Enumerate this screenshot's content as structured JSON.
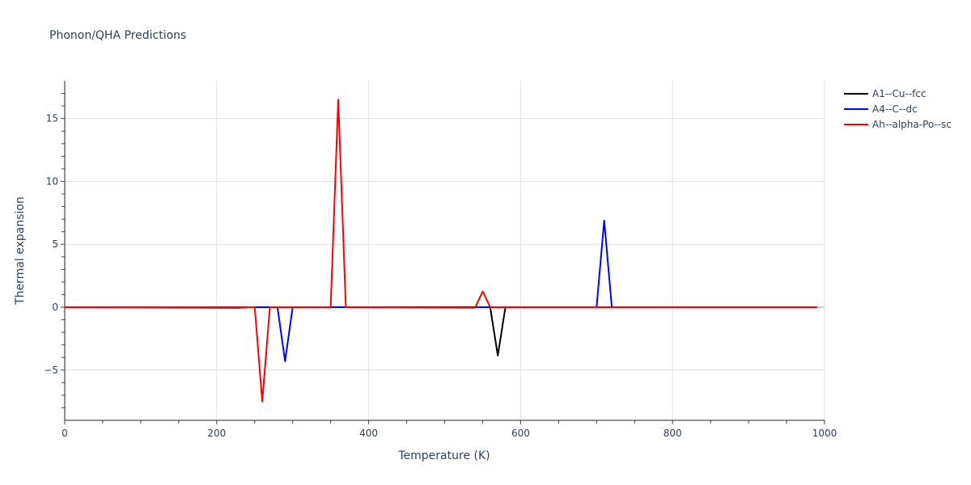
{
  "chart_data": {
    "type": "line",
    "title": "Phonon/QHA Predictions",
    "xlabel": "Temperature (K)",
    "ylabel": "Thermal expansion",
    "xlim": [
      0,
      1000
    ],
    "ylim": [
      -9,
      18
    ],
    "x_ticks": [
      0,
      200,
      400,
      600,
      800,
      1000
    ],
    "y_ticks": [
      -5,
      0,
      5,
      10,
      15
    ],
    "grid": true,
    "legend_position": "right",
    "x_step": 10,
    "x_range": [
      0,
      990
    ],
    "series": [
      {
        "name": "A1--Cu--fcc",
        "color": "#000000",
        "points": [
          [
            0,
            0
          ],
          [
            560,
            0
          ],
          [
            570,
            -3.85
          ],
          [
            580,
            0
          ],
          [
            990,
            0
          ]
        ]
      },
      {
        "name": "A4--C--dc",
        "color": "#0000ff",
        "points": [
          [
            0,
            0
          ],
          [
            230,
            -0.05
          ],
          [
            240,
            0
          ],
          [
            280,
            0
          ],
          [
            290,
            -4.3
          ],
          [
            300,
            0
          ],
          [
            700,
            0
          ],
          [
            710,
            6.9
          ],
          [
            720,
            0
          ],
          [
            990,
            0
          ]
        ]
      },
      {
        "name": "Ah--alpha-Po--sc",
        "color": "#ff0000",
        "points": [
          [
            0,
            0
          ],
          [
            250,
            0
          ],
          [
            260,
            -7.5
          ],
          [
            270,
            0
          ],
          [
            350,
            0
          ],
          [
            360,
            16.5
          ],
          [
            370,
            0
          ],
          [
            540,
            -0.05
          ],
          [
            550,
            1.25
          ],
          [
            560,
            0
          ],
          [
            990,
            0
          ]
        ]
      }
    ]
  },
  "legend": {
    "items": [
      {
        "label": "A1--Cu--fcc",
        "color": "#000000"
      },
      {
        "label": "A4--C--dc",
        "color": "#0000ff"
      },
      {
        "label": "Ah--alpha-Po--sc",
        "color": "#ff0000"
      }
    ]
  }
}
